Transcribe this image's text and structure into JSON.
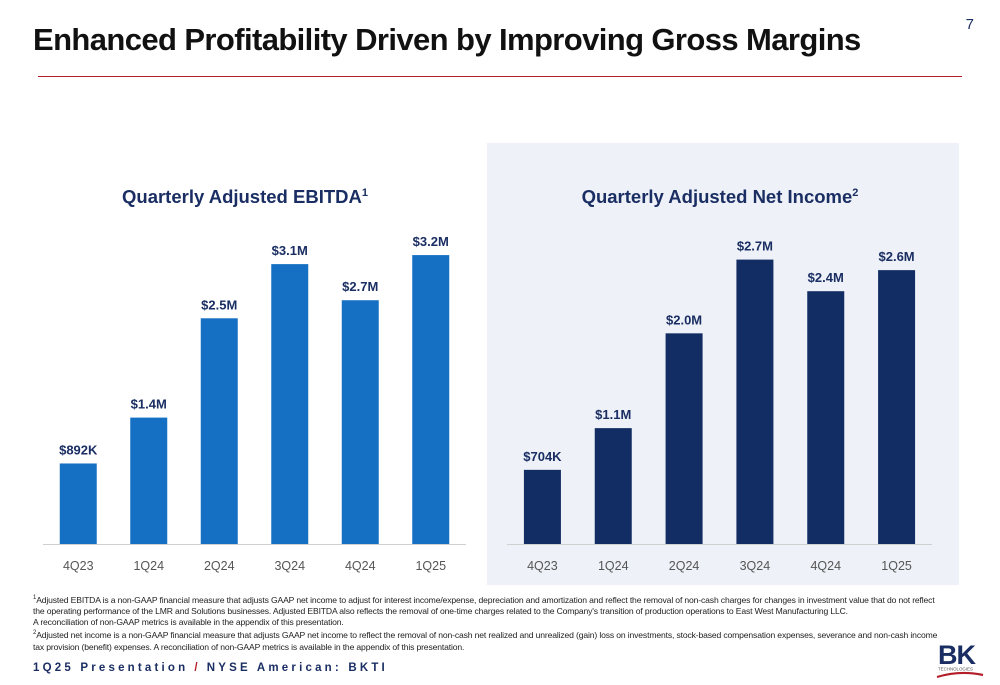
{
  "header": {
    "title": "Enhanced Profitability Driven by Improving Gross Margins",
    "page_number": "7"
  },
  "chart_data": [
    {
      "type": "bar",
      "title": "Quarterly Adjusted EBITDA",
      "title_superscript": "1",
      "categories": [
        "4Q23",
        "1Q24",
        "2Q24",
        "3Q24",
        "4Q24",
        "1Q25"
      ],
      "values": [
        0.892,
        1.4,
        2.5,
        3.1,
        2.7,
        3.2
      ],
      "unit": "$M",
      "data_labels": [
        "$892K",
        "$1.4M",
        "$2.5M",
        "$3.1M",
        "$2.7M",
        "$3.2M"
      ],
      "ylim": [
        0,
        3.5
      ],
      "color": "#1570c4",
      "grid": false,
      "legend": "none"
    },
    {
      "type": "bar",
      "title": "Quarterly Adjusted Net Income",
      "title_superscript": "2",
      "categories": [
        "4Q23",
        "1Q24",
        "2Q24",
        "3Q24",
        "4Q24",
        "1Q25"
      ],
      "values": [
        0.704,
        1.1,
        2.0,
        2.7,
        2.4,
        2.6
      ],
      "unit": "$M",
      "data_labels": [
        "$704K",
        "$1.1M",
        "$2.0M",
        "$2.7M",
        "$2.4M",
        "$2.6M"
      ],
      "ylim": [
        0,
        3.0
      ],
      "color": "#122d63",
      "grid": false,
      "legend": "none"
    }
  ],
  "footnotes": {
    "note1_marker": "1",
    "note1_text": "Adjusted EBITDA is a non-GAAP financial measure that adjusts GAAP net income to adjust for interest income/expense, depreciation and amortization and reflect  the removal of non-cash charges for changes in investment value that do not reflect the operating performance of the LMR and Solutions businesses.  Adjusted EBITDA also reflects the removal of one-time charges related to the Company's transition of production operations to East West Manufacturing LLC.",
    "note1_text_2": "A reconciliation of non-GAAP metrics is available in the appendix of this presentation.",
    "note2_marker": "2",
    "note2_text": "Adjusted net income is a non-GAAP financial measure that adjusts GAAP net income to reflect the removal of non-cash net realized and unrealized (gain) loss on investments, stock-based compensation expenses, severance and non-cash income tax provision (benefit) expenses. A reconciliation of non-GAAP metrics is available in the appendix of this presentation."
  },
  "footer": {
    "left": "1Q25 Presentation",
    "separator": "/",
    "right": "NYSE American: BKTI"
  },
  "logo": {
    "letters": "BK",
    "subtext": "TECHNOLOGIES",
    "colors": {
      "letters": "#1a2e63",
      "swoosh": "#b41e28"
    }
  },
  "colors": {
    "title_rule": "#b41e28",
    "chart_title": "#1a2e63",
    "label_text": "#1a2e63",
    "panel_background": "#eef1f7"
  }
}
